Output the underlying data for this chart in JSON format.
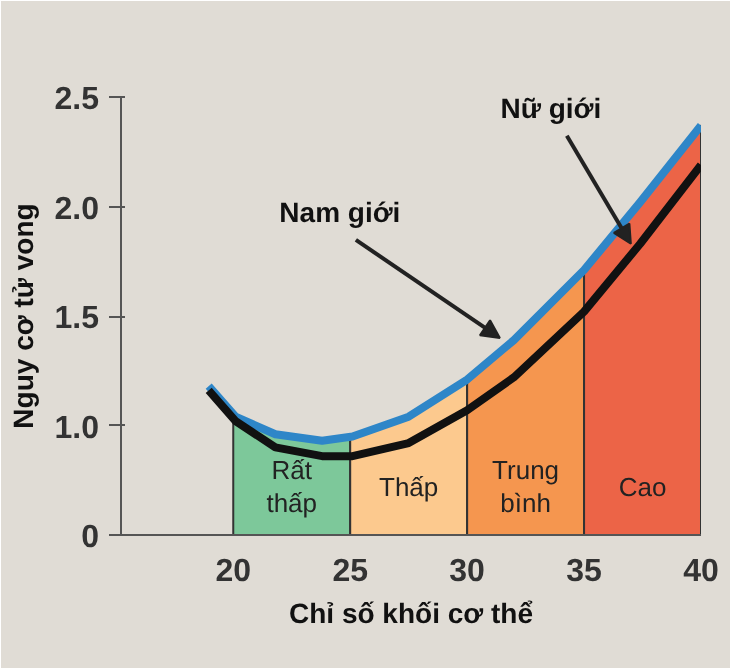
{
  "chart_data": {
    "type": "line",
    "xlabel": "Chỉ số khối cơ thể",
    "ylabel": "Nguy cơ tử vong",
    "xlim": [
      15.2,
      40
    ],
    "ylim": [
      0.5,
      2.5
    ],
    "xticks": [
      20,
      25,
      30,
      35,
      40
    ],
    "yticks": [
      {
        "value": 0.5,
        "label": "0"
      },
      {
        "value": 1.0,
        "label": "1.0"
      },
      {
        "value": 1.5,
        "label": "1.5"
      },
      {
        "value": 2.0,
        "label": "2.0"
      },
      {
        "value": 2.5,
        "label": "2.5"
      }
    ],
    "series": [
      {
        "type": "area",
        "name": "Rất\nthấp",
        "color": "#7dc89a",
        "x": [
          20,
          21.8,
          23.8,
          25
        ],
        "values": [
          1.04,
          0.96,
          0.93,
          0.95
        ]
      },
      {
        "type": "area",
        "name": "Thấp",
        "color": "#fcc98e",
        "x": [
          25,
          27.5,
          30
        ],
        "values": [
          0.95,
          1.04,
          1.21
        ]
      },
      {
        "type": "area",
        "name": "Trung\nbình",
        "color": "#f5964f",
        "x": [
          30,
          32,
          35
        ],
        "values": [
          1.21,
          1.39,
          1.71
        ]
      },
      {
        "type": "area",
        "name": "Cao",
        "color": "#ec6447",
        "x": [
          35,
          37.4,
          40
        ],
        "values": [
          1.71,
          2.02,
          2.37
        ]
      },
      {
        "color": "#2e86c8",
        "x": [
          18.95,
          20.1,
          21.8,
          23.8,
          25.1,
          27.5,
          30.0,
          32.0,
          35.0,
          37.4,
          40.0
        ],
        "values": [
          1.18,
          1.04,
          0.96,
          0.93,
          0.95,
          1.04,
          1.21,
          1.39,
          1.71,
          2.02,
          2.37
        ]
      },
      {
        "color": "#111111",
        "x": [
          18.95,
          20.1,
          21.8,
          23.8,
          25.1,
          27.5,
          30.0,
          32.0,
          35.0,
          37.4,
          40.0
        ],
        "values": [
          1.16,
          1.02,
          0.9,
          0.86,
          0.86,
          0.92,
          1.07,
          1.22,
          1.52,
          1.83,
          2.19
        ]
      }
    ],
    "annotations": [
      {
        "text": "Nam giới",
        "x": 31.4,
        "y": 1.4
      },
      {
        "text": "Nữ giới",
        "x": 37.0,
        "y": 1.83
      }
    ],
    "grid": false,
    "line_style": "solid",
    "marker": "none"
  }
}
